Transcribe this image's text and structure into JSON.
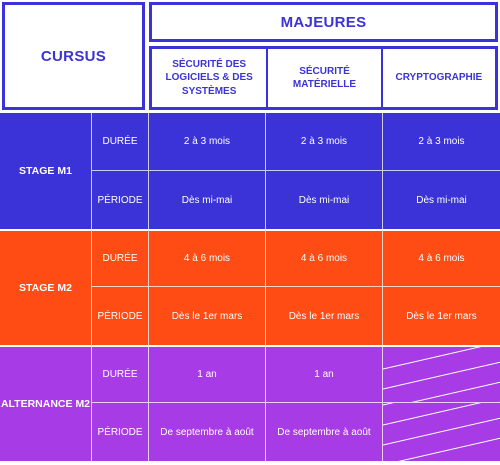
{
  "header": {
    "cursus_label": "CURSUS",
    "majeures_label": "MAJEURES",
    "majors": [
      "SÉCURITÉ DES LOGICIELS & DES SYSTÈMES",
      "SÉCURITÉ MATÉRIELLE",
      "CRYPTOGRAPHIE"
    ]
  },
  "bands": [
    {
      "name": "STAGE M1",
      "color": "#3b33d8",
      "rows": [
        {
          "label": "DURÉE",
          "values": [
            "2 à 3 mois",
            "2 à 3 mois",
            "2 à 3 mois"
          ]
        },
        {
          "label": "PÉRIODE",
          "values": [
            "Dès mi-mai",
            "Dès mi-mai",
            "Dès mi-mai"
          ]
        }
      ]
    },
    {
      "name": "STAGE M2",
      "color": "#ff4b14",
      "rows": [
        {
          "label": "DURÉE",
          "values": [
            "4 à 6 mois",
            "4 à 6 mois",
            "4 à 6 mois"
          ]
        },
        {
          "label": "PÉRIODE",
          "values": [
            "Dès le 1er mars",
            "Dès le 1er mars",
            "Dès le 1er mars"
          ]
        }
      ]
    },
    {
      "name": "ALTERNANCE M2",
      "color": "#a73be6",
      "rows": [
        {
          "label": "DURÉE",
          "values": [
            "1 an",
            "1 an",
            ""
          ]
        },
        {
          "label": "PÉRIODE",
          "values": [
            "De septembre à août",
            "De septembre à août",
            ""
          ]
        }
      ]
    }
  ]
}
